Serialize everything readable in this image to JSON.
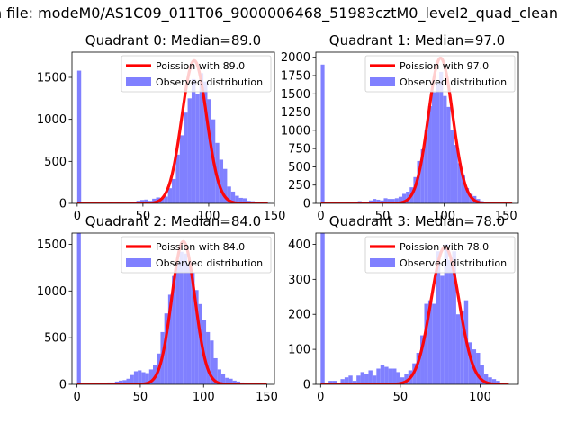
{
  "figure_title": "n file: modeM0/AS1C09_011T06_9000006468_51983cztM0_level2_quad_clean",
  "colors": {
    "poisson": "#ff0000",
    "observed": "#8080ff",
    "axes": "#000000"
  },
  "chart_data": [
    {
      "type": "bar",
      "title": "Quadrant 0: Median=89.0",
      "median": 89.0,
      "xlim": [
        -4,
        150
      ],
      "ylim": [
        0,
        1800
      ],
      "xticks": [
        0,
        50,
        100,
        150
      ],
      "yticks": [
        0,
        500,
        1000,
        1500
      ],
      "legend": {
        "position": "upper-right",
        "entries": [
          "Poission with 89.0",
          "Observed distribution"
        ]
      },
      "series": [
        {
          "name": "Observed distribution",
          "kind": "histogram",
          "bin_width": 3,
          "bins_x": [
            0,
            3,
            6,
            9,
            12,
            15,
            18,
            21,
            24,
            27,
            30,
            33,
            36,
            39,
            42,
            45,
            48,
            51,
            54,
            57,
            60,
            63,
            66,
            69,
            72,
            75,
            78,
            81,
            84,
            87,
            90,
            93,
            96,
            99,
            102,
            105,
            108,
            111,
            114,
            117,
            120,
            123,
            126,
            129,
            132,
            135,
            138,
            141,
            144
          ],
          "values": [
            1580,
            0,
            0,
            0,
            0,
            0,
            5,
            0,
            10,
            5,
            15,
            15,
            5,
            20,
            10,
            30,
            40,
            45,
            30,
            55,
            70,
            60,
            80,
            180,
            290,
            580,
            810,
            1080,
            1250,
            1480,
            1300,
            1550,
            1450,
            1240,
            1000,
            720,
            520,
            410,
            200,
            140,
            90,
            65,
            60,
            30,
            25,
            15,
            10,
            5,
            5
          ]
        },
        {
          "name": "Poission with 89.0",
          "kind": "poisson",
          "lambda": 89.0,
          "scale": 1700,
          "xmin": 0,
          "xmax": 145
        }
      ]
    },
    {
      "type": "bar",
      "title": "Quadrant 1: Median=97.0",
      "median": 97.0,
      "xlim": [
        -4,
        160
      ],
      "ylim": [
        0,
        2070
      ],
      "xticks": [
        0,
        50,
        100,
        150
      ],
      "yticks": [
        0,
        250,
        500,
        750,
        1000,
        1250,
        1500,
        1750,
        2000
      ],
      "legend": {
        "position": "upper-right",
        "entries": [
          "Poission with 97.0",
          "Observed distribution"
        ]
      },
      "series": [
        {
          "name": "Observed distribution",
          "kind": "histogram",
          "bin_width": 3,
          "bins_x": [
            0,
            3,
            6,
            9,
            12,
            15,
            18,
            21,
            24,
            27,
            30,
            33,
            36,
            39,
            42,
            45,
            48,
            51,
            54,
            57,
            60,
            63,
            66,
            69,
            72,
            75,
            78,
            81,
            84,
            87,
            90,
            93,
            96,
            99,
            102,
            105,
            108,
            111,
            114,
            117,
            120,
            123,
            126,
            129,
            132,
            135,
            138,
            141,
            144,
            147,
            150,
            153
          ],
          "values": [
            1900,
            0,
            0,
            0,
            0,
            5,
            0,
            10,
            5,
            10,
            30,
            20,
            10,
            40,
            60,
            50,
            40,
            70,
            60,
            60,
            70,
            90,
            130,
            160,
            220,
            360,
            580,
            740,
            1000,
            1330,
            1520,
            1650,
            1800,
            1470,
            1320,
            1000,
            800,
            550,
            380,
            210,
            130,
            100,
            60,
            30,
            20,
            15,
            10,
            5,
            5,
            5,
            0,
            0
          ]
        },
        {
          "name": "Poission with 97.0",
          "kind": "poisson",
          "lambda": 97.0,
          "scale": 1990,
          "xmin": 0,
          "xmax": 155
        }
      ]
    },
    {
      "type": "bar",
      "title": "Quadrant 2: Median=84.0",
      "median": 84.0,
      "xlim": [
        -4,
        156
      ],
      "ylim": [
        0,
        1620
      ],
      "xticks": [
        0,
        50,
        100,
        150
      ],
      "yticks": [
        0,
        500,
        1000,
        1500
      ],
      "legend": {
        "position": "upper-right",
        "entries": [
          "Poission with 84.0",
          "Observed distribution"
        ]
      },
      "series": [
        {
          "name": "Observed distribution",
          "kind": "histogram",
          "bin_width": 3,
          "bins_x": [
            0,
            3,
            6,
            9,
            12,
            15,
            18,
            21,
            24,
            27,
            30,
            33,
            36,
            39,
            42,
            45,
            48,
            51,
            54,
            57,
            60,
            63,
            66,
            69,
            72,
            75,
            78,
            81,
            84,
            87,
            90,
            93,
            96,
            99,
            102,
            105,
            108,
            111,
            114,
            117,
            120,
            123,
            126,
            129,
            132,
            135,
            138,
            141,
            144,
            147
          ],
          "values": [
            1620,
            0,
            0,
            0,
            5,
            5,
            10,
            15,
            20,
            20,
            30,
            40,
            45,
            60,
            100,
            140,
            150,
            130,
            120,
            160,
            210,
            330,
            560,
            760,
            960,
            1160,
            1320,
            1420,
            1400,
            1290,
            1200,
            1010,
            860,
            690,
            560,
            470,
            280,
            160,
            110,
            70,
            60,
            40,
            30,
            20,
            10,
            5,
            5,
            5,
            0,
            0
          ]
        },
        {
          "name": "Poission with 84.0",
          "kind": "poisson",
          "lambda": 84.0,
          "scale": 1530,
          "xmin": 0,
          "xmax": 150
        }
      ]
    },
    {
      "type": "bar",
      "title": "Quadrant 3: Median=78.0",
      "median": 78.0,
      "xlim": [
        -3,
        124
      ],
      "ylim": [
        0,
        432
      ],
      "xticks": [
        0,
        50,
        100
      ],
      "yticks": [
        0,
        100,
        200,
        300,
        400
      ],
      "legend": {
        "position": "upper-right",
        "entries": [
          "Poission with 78.0",
          "Observed distribution"
        ]
      },
      "series": [
        {
          "name": "Observed distribution",
          "kind": "histogram",
          "bin_width": 2.5,
          "bins_x": [
            0,
            2.5,
            5,
            7.5,
            10,
            12.5,
            15,
            17.5,
            20,
            22.5,
            25,
            27.5,
            30,
            32.5,
            35,
            37.5,
            40,
            42.5,
            45,
            47.5,
            50,
            52.5,
            55,
            57.5,
            60,
            62.5,
            65,
            67.5,
            70,
            72.5,
            75,
            77.5,
            80,
            82.5,
            85,
            87.5,
            90,
            92.5,
            95,
            97.5,
            100,
            102.5,
            105,
            107.5,
            110,
            112.5
          ],
          "values": [
            432,
            5,
            10,
            10,
            5,
            15,
            20,
            25,
            10,
            25,
            35,
            30,
            40,
            25,
            45,
            55,
            50,
            45,
            45,
            35,
            20,
            30,
            40,
            60,
            90,
            140,
            230,
            240,
            230,
            380,
            310,
            400,
            355,
            380,
            200,
            210,
            240,
            120,
            100,
            90,
            55,
            30,
            20,
            15,
            10,
            5
          ]
        },
        {
          "name": "Poission with 78.0",
          "kind": "poisson",
          "lambda": 78.0,
          "scale": 392,
          "xmin": 0,
          "xmax": 118
        }
      ]
    }
  ]
}
